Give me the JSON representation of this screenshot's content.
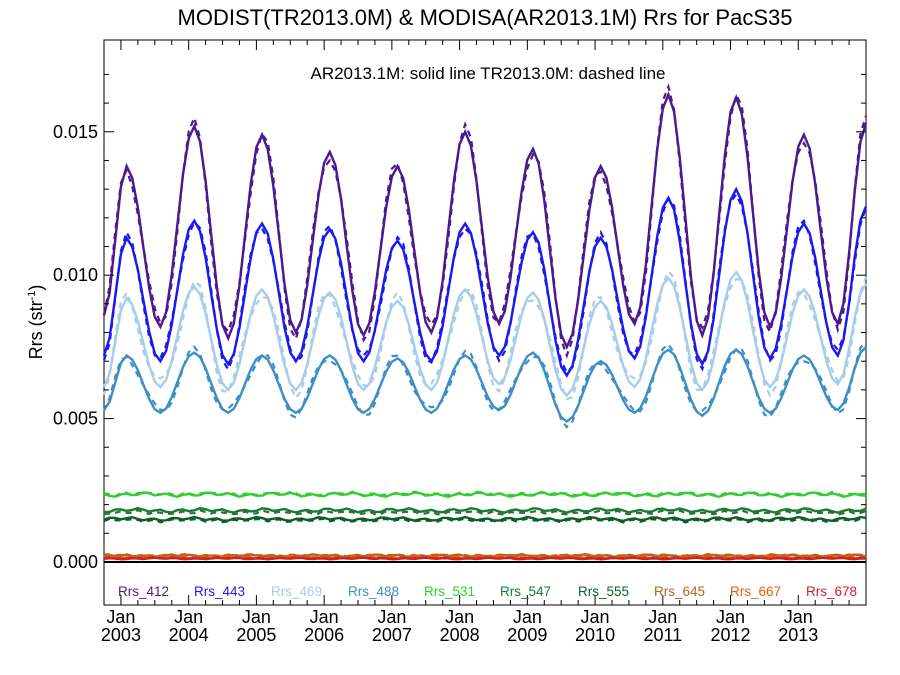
{
  "chart_data": {
    "type": "line",
    "title": "MODIST(TR2013.0M) & MODISA(AR2013.1M)  Rrs for PacS35",
    "annotation": "AR2013.1M: solid line   TR2013.0M: dashed line",
    "ylabel_main": "Rrs (str",
    "ylabel_sup": "-1",
    "ylabel_close": ")",
    "ylim": [
      -0.0015,
      0.0182
    ],
    "yticks": [
      {
        "value": 0.0,
        "label": "0.000"
      },
      {
        "value": 0.005,
        "label": "0.005"
      },
      {
        "value": 0.01,
        "label": "0.010"
      },
      {
        "value": 0.015,
        "label": "0.015"
      }
    ],
    "xlim": [
      2002.75,
      2014.0
    ],
    "xticks": [
      {
        "value": 2003.0,
        "month": "Jan",
        "year": "2003"
      },
      {
        "value": 2004.0,
        "month": "Jan",
        "year": "2004"
      },
      {
        "value": 2005.0,
        "month": "Jan",
        "year": "2005"
      },
      {
        "value": 2006.0,
        "month": "Jan",
        "year": "2006"
      },
      {
        "value": 2007.0,
        "month": "Jan",
        "year": "2007"
      },
      {
        "value": 2008.0,
        "month": "Jan",
        "year": "2008"
      },
      {
        "value": 2009.0,
        "month": "Jan",
        "year": "2009"
      },
      {
        "value": 2010.0,
        "month": "Jan",
        "year": "2010"
      },
      {
        "value": 2011.0,
        "month": "Jan",
        "year": "2011"
      },
      {
        "value": 2012.0,
        "month": "Jan",
        "year": "2012"
      },
      {
        "value": 2013.0,
        "month": "Jan",
        "year": "2013"
      }
    ],
    "legend_position": "bottom",
    "series": [
      {
        "name": "Rrs_412",
        "color": "#4b1a8c",
        "peak_x": [
          2003.08,
          2004.08,
          2005.08,
          2006.08,
          2007.08,
          2008.08,
          2009.08,
          2010.08,
          2011.08,
          2012.08,
          2013.08
        ],
        "peak_y": [
          0.0138,
          0.0152,
          0.0149,
          0.0143,
          0.0138,
          0.015,
          0.0144,
          0.0138,
          0.0163,
          0.0162,
          0.0149
        ],
        "trough_x": [
          2002.75,
          2003.58,
          2004.58,
          2005.58,
          2006.58,
          2007.58,
          2008.58,
          2009.58,
          2010.58,
          2011.58,
          2012.58,
          2013.58
        ],
        "trough_y": [
          0.0086,
          0.0082,
          0.0078,
          0.008,
          0.0079,
          0.008,
          0.0083,
          0.0075,
          0.0083,
          0.0079,
          0.0082,
          0.0083
        ],
        "end_y": 0.0153,
        "dash_offset": 0.0003
      },
      {
        "name": "Rrs_443",
        "color": "#1a1aee",
        "peak_x": [
          2003.08,
          2004.08,
          2005.08,
          2006.08,
          2007.08,
          2008.08,
          2009.08,
          2010.08,
          2011.08,
          2012.08,
          2013.08
        ],
        "peak_y": [
          0.0113,
          0.0119,
          0.0118,
          0.0116,
          0.0112,
          0.0118,
          0.0115,
          0.0113,
          0.0127,
          0.013,
          0.0118
        ],
        "trough_x": [
          2002.75,
          2003.58,
          2004.58,
          2005.58,
          2006.58,
          2007.58,
          2008.58,
          2009.58,
          2010.58,
          2011.58,
          2012.58,
          2013.58
        ],
        "trough_y": [
          0.0072,
          0.007,
          0.0069,
          0.007,
          0.007,
          0.007,
          0.0072,
          0.0065,
          0.0071,
          0.0069,
          0.0071,
          0.0072
        ],
        "end_y": 0.0124,
        "dash_offset": -0.0002
      },
      {
        "name": "Rrs_469",
        "color": "#a7cde8",
        "peak_x": [
          2003.08,
          2004.08,
          2005.08,
          2006.08,
          2007.08,
          2008.08,
          2009.08,
          2010.08,
          2011.08,
          2012.08,
          2013.08
        ],
        "peak_y": [
          0.0092,
          0.0096,
          0.0095,
          0.0094,
          0.0091,
          0.0095,
          0.0094,
          0.0091,
          0.0099,
          0.0101,
          0.0095
        ],
        "trough_x": [
          2002.75,
          2003.58,
          2004.58,
          2005.58,
          2006.58,
          2007.58,
          2008.58,
          2009.58,
          2010.58,
          2011.58,
          2012.58,
          2013.58
        ],
        "trough_y": [
          0.0061,
          0.0061,
          0.006,
          0.006,
          0.006,
          0.006,
          0.0062,
          0.0058,
          0.0061,
          0.006,
          0.0061,
          0.0062
        ],
        "end_y": 0.0097,
        "dash_offset": -0.0003
      },
      {
        "name": "Rrs_488",
        "color": "#3d8fc6",
        "peak_x": [
          2003.08,
          2004.08,
          2005.08,
          2006.08,
          2007.08,
          2008.08,
          2009.08,
          2010.08,
          2011.08,
          2012.08,
          2013.08
        ],
        "peak_y": [
          0.0072,
          0.0073,
          0.0072,
          0.0072,
          0.0071,
          0.0072,
          0.0073,
          0.007,
          0.0074,
          0.0074,
          0.0072
        ],
        "trough_x": [
          2002.75,
          2003.58,
          2004.58,
          2005.58,
          2006.58,
          2007.58,
          2008.58,
          2009.58,
          2010.58,
          2011.58,
          2012.58,
          2013.58
        ],
        "trough_y": [
          0.0053,
          0.0052,
          0.0052,
          0.0052,
          0.0052,
          0.0052,
          0.0053,
          0.0049,
          0.0052,
          0.0051,
          0.0052,
          0.0053
        ],
        "end_y": 0.0075,
        "dash_offset": -0.0002
      },
      {
        "name": "Rrs_531",
        "color": "#33cc33",
        "flat": 0.00235,
        "wiggle": 8e-05,
        "dash_offset": 3e-05
      },
      {
        "name": "Rrs_547",
        "color": "#1e7a33",
        "flat": 0.0018,
        "wiggle": 8e-05,
        "dash_offset": -8e-05
      },
      {
        "name": "Rrs_555",
        "color": "#0e5e2a",
        "flat": 0.0015,
        "wiggle": 7e-05,
        "dash_offset": -5e-05
      },
      {
        "name": "Rrs_645",
        "color": "#b5651d",
        "flat": 0.00022,
        "wiggle": 4e-05,
        "dash_offset": 2e-05
      },
      {
        "name": "Rrs_667",
        "color": "#e06010",
        "flat": 0.00015,
        "wiggle": 3e-05,
        "dash_offset": 2e-05
      },
      {
        "name": "Rrs_678",
        "color": "#d42020",
        "flat": 0.00012,
        "wiggle": 3e-05,
        "dash_offset": 2e-05
      }
    ]
  }
}
